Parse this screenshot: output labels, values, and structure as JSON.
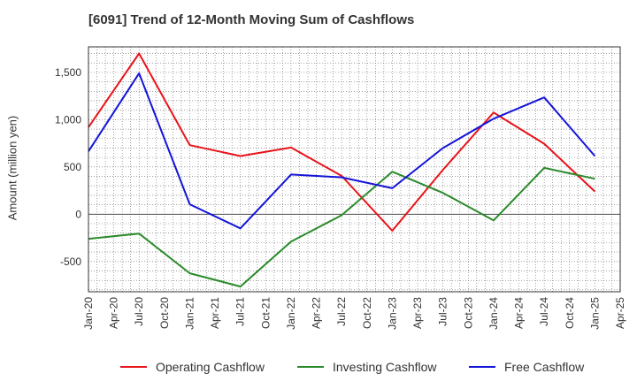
{
  "chart_data": {
    "type": "line",
    "title": "[6091]  Trend of 12-Month Moving Sum of Cashflows",
    "xlabel": "",
    "ylabel": "Amount (million yen)",
    "x_ticks": [
      "Jan-20",
      "Apr-20",
      "Jul-20",
      "Oct-20",
      "Jan-21",
      "Apr-21",
      "Jul-21",
      "Oct-21",
      "Jan-22",
      "Apr-22",
      "Jul-22",
      "Oct-22",
      "Jan-23",
      "Apr-23",
      "Jul-23",
      "Oct-23",
      "Jan-24",
      "Apr-24",
      "Jul-24",
      "Oct-24",
      "Jan-25",
      "Apr-25"
    ],
    "y_ticks": [
      "-500",
      "0",
      "500",
      "1,000",
      "1,500"
    ],
    "ylim": [
      -820,
      1770
    ],
    "grid": true,
    "legend_position": "bottom",
    "x": [
      "Jan-20",
      "Jul-20",
      "Jan-21",
      "Jul-21",
      "Jan-22",
      "Jul-22",
      "Jan-23",
      "Jul-23",
      "Jan-24",
      "Jul-24",
      "Jan-25"
    ],
    "series": [
      {
        "name": "Operating Cashflow",
        "color": "#e8141a",
        "values": [
          920,
          1700,
          730,
          615,
          705,
          405,
          -175,
          470,
          1075,
          745,
          240
        ]
      },
      {
        "name": "Investing Cashflow",
        "color": "#2a8a2a",
        "values": [
          -260,
          -205,
          -625,
          -765,
          -290,
          -10,
          450,
          225,
          -65,
          490,
          375
        ]
      },
      {
        "name": "Free Cashflow",
        "color": "#1414d9",
        "values": [
          665,
          1490,
          105,
          -150,
          420,
          390,
          275,
          700,
          1010,
          1235,
          615
        ]
      }
    ]
  }
}
